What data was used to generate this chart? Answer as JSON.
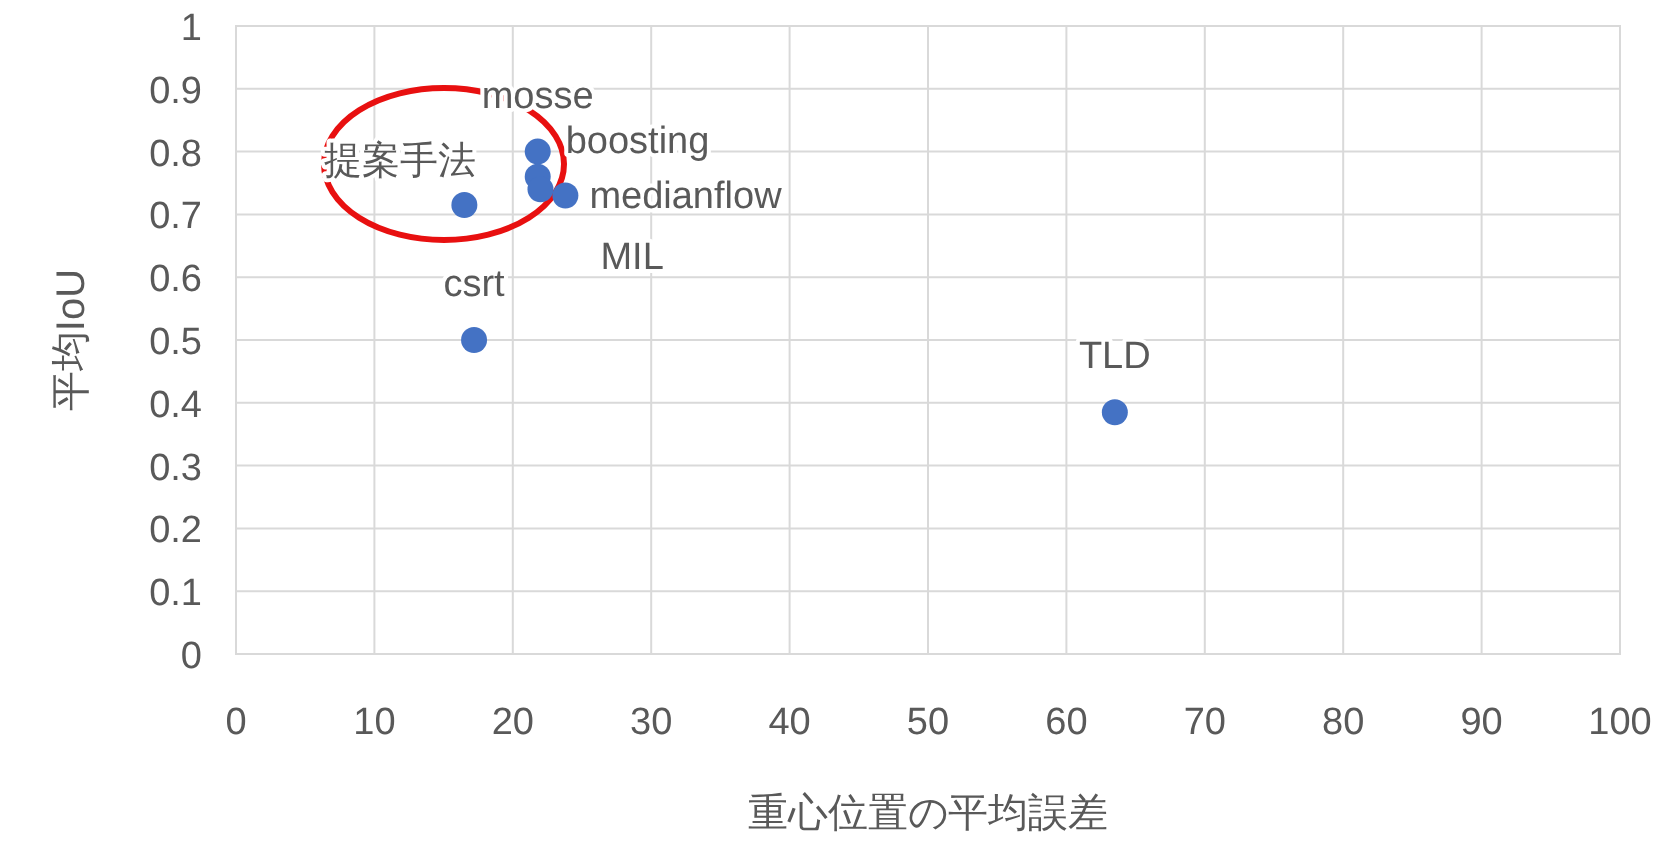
{
  "chart_data": {
    "type": "scatter",
    "xlabel": "重心位置の平均誤差",
    "ylabel": "平均IoU",
    "x": [
      16.5,
      17.2,
      63.5,
      21.8,
      21.8,
      22,
      23.8
    ],
    "values": [
      0.715,
      0.5,
      0.385,
      0.8,
      0.76,
      0.74,
      0.73
    ],
    "color": "#4472c4",
    "marker": "circle",
    "annotations": [
      {
        "text": "提案手法",
        "x": 16.5,
        "y": 0.715
      },
      {
        "text": "csrt",
        "x": 17.2,
        "y": 0.5
      },
      {
        "text": "TLD",
        "x": 63.5,
        "y": 0.385
      },
      {
        "text": "mosse",
        "x": 21.8,
        "y": 0.8
      },
      {
        "text": "boosting",
        "x": 21.8,
        "y": 0.76
      },
      {
        "text": "MIL",
        "x": 22,
        "y": 0.74
      },
      {
        "text": "medianflow",
        "x": 23.8,
        "y": 0.73
      }
    ],
    "xlim": [
      0,
      100
    ],
    "xticks": [
      0,
      10,
      20,
      30,
      40,
      50,
      60,
      70,
      80,
      90,
      100
    ],
    "ylim": [
      0,
      1
    ],
    "yticks": [
      0,
      0.1,
      0.2,
      0.3,
      0.4,
      0.5,
      0.6,
      0.7,
      0.8,
      0.9,
      1
    ],
    "grid": true
  }
}
